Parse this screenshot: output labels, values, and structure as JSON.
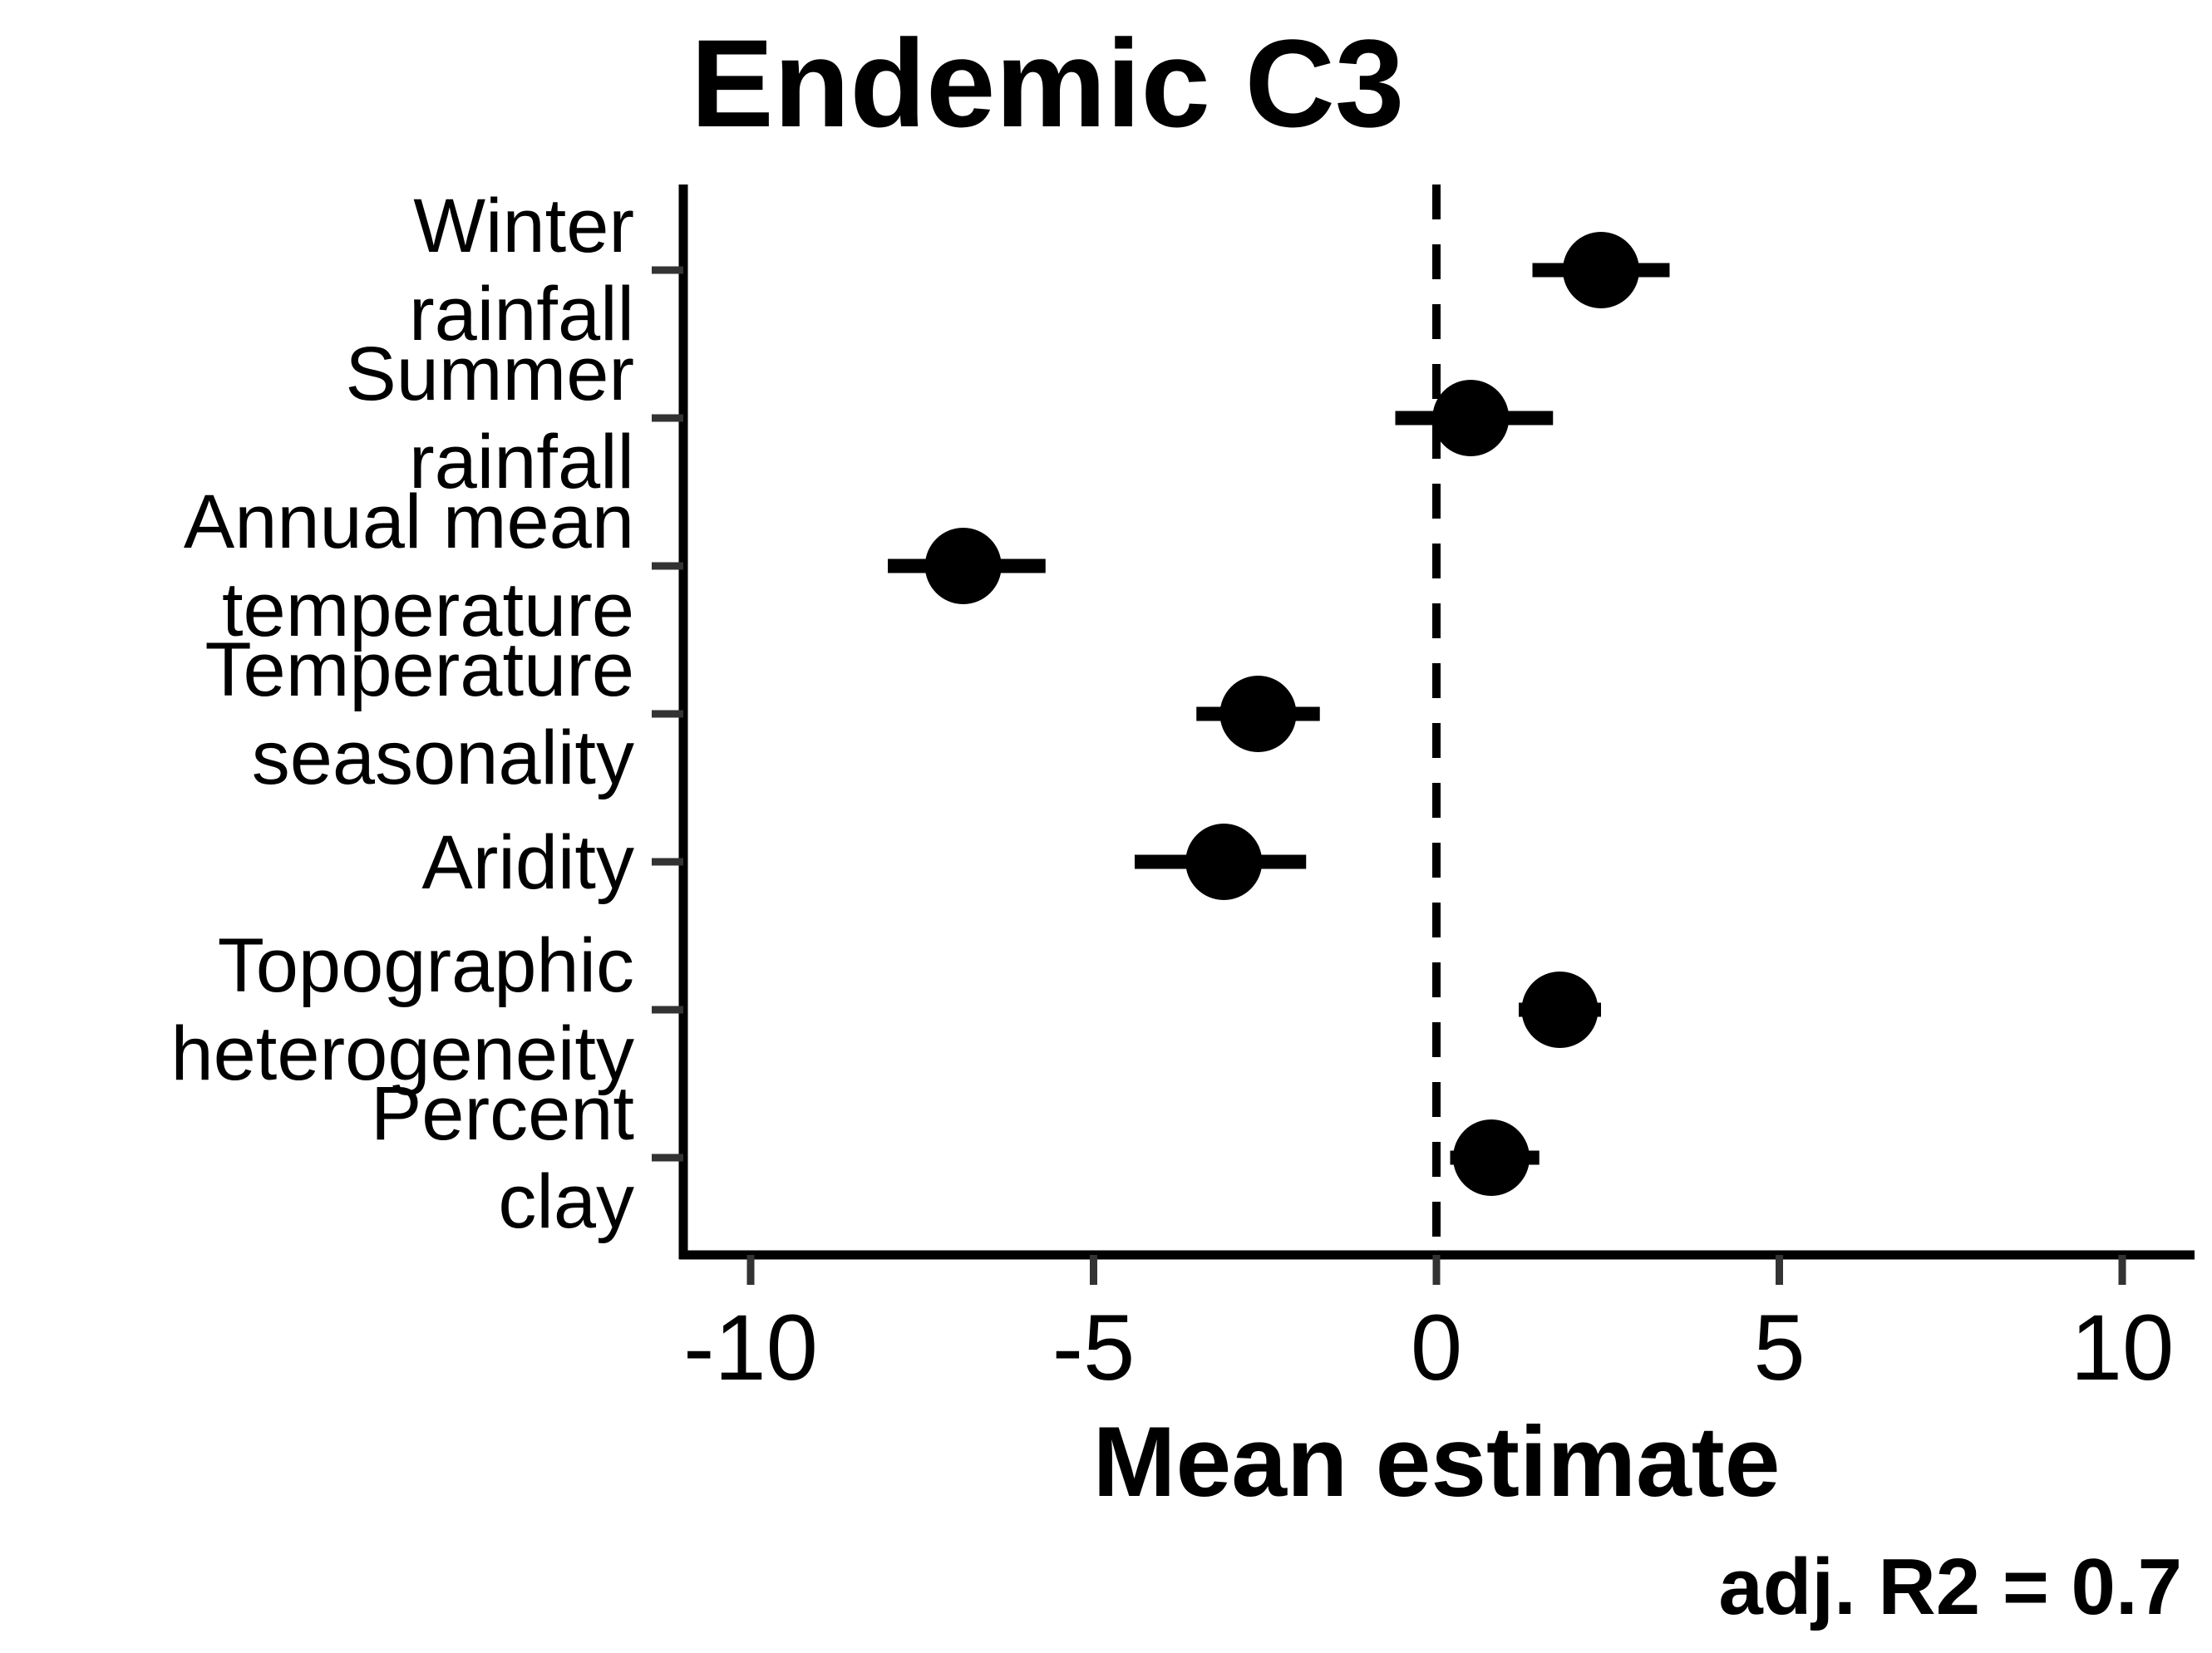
{
  "chart_data": {
    "type": "scatter",
    "subtype": "coefficient-forest-plot",
    "title": "Endemic C3",
    "xlabel": "Mean estimate",
    "ylabel": "",
    "xlim": [
      -11,
      11
    ],
    "xticks": [
      -10,
      -5,
      0,
      5,
      10
    ],
    "xtick_labels": [
      "-10",
      "-5",
      "0",
      "5",
      "10"
    ],
    "reference_line": {
      "x": 0,
      "style": "dashed"
    },
    "grid": false,
    "legend": "none",
    "annotation": "adj. R2 = 0.7",
    "colors": {
      "points": "#000000",
      "axes": "#000000",
      "ticks": "#333333"
    },
    "categories": [
      {
        "label_lines": [
          "Winter",
          "rainfall"
        ],
        "estimate": 2.4,
        "ci_low": 1.4,
        "ci_high": 3.4
      },
      {
        "label_lines": [
          "Summer",
          "rainfall"
        ],
        "estimate": 0.5,
        "ci_low": -0.6,
        "ci_high": 1.7
      },
      {
        "label_lines": [
          "Annual mean",
          "temperature"
        ],
        "estimate": -6.9,
        "ci_low": -8.0,
        "ci_high": -5.7
      },
      {
        "label_lines": [
          "Temperature",
          "seasonality"
        ],
        "estimate": -2.6,
        "ci_low": -3.5,
        "ci_high": -1.7
      },
      {
        "label_lines": [
          "Aridity"
        ],
        "estimate": -3.1,
        "ci_low": -4.4,
        "ci_high": -1.9
      },
      {
        "label_lines": [
          "Topographic",
          "heterogeneity"
        ],
        "estimate": 1.8,
        "ci_low": 1.2,
        "ci_high": 2.4
      },
      {
        "label_lines": [
          "Percent",
          "clay"
        ],
        "estimate": 0.8,
        "ci_low": 0.2,
        "ci_high": 1.5
      }
    ]
  }
}
